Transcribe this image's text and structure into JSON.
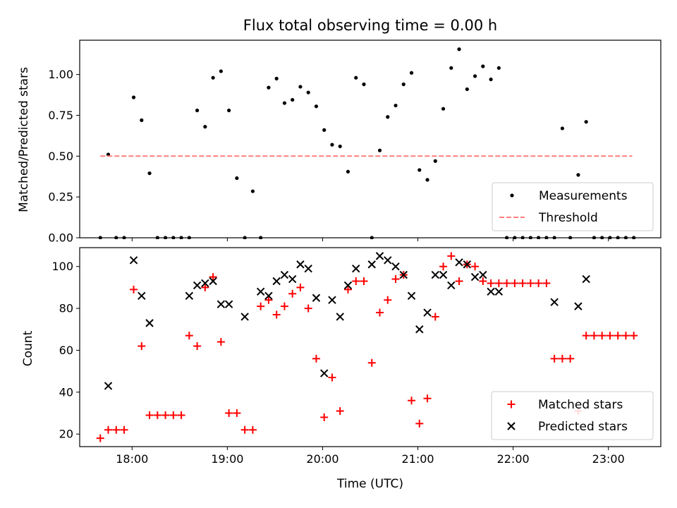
{
  "chart_data": [
    {
      "type": "scatter",
      "title": "Flux total observing time = 0.00 h",
      "xlabel": "",
      "ylabel": "Matched/Predicted stars",
      "xlim": [
        "17:27",
        "23:33"
      ],
      "ylim": [
        0,
        1.21
      ],
      "xticks": [
        "18:00",
        "19:00",
        "20:00",
        "21:00",
        "22:00",
        "23:00"
      ],
      "yticks": [
        "0.00",
        "0.25",
        "0.50",
        "0.75",
        "1.00"
      ],
      "ytick_values": [
        0,
        0.25,
        0.5,
        0.75,
        1.0
      ],
      "legend_position": "lower-right",
      "series": [
        {
          "name": "Measurements",
          "kind": "scatter",
          "color": "#000000",
          "x": [
            "17:40",
            "17:45",
            "17:50",
            "17:55",
            "18:01",
            "18:06",
            "18:11",
            "18:16",
            "18:21",
            "18:26",
            "18:31",
            "18:36",
            "18:41",
            "18:46",
            "18:51",
            "18:56",
            "19:01",
            "19:06",
            "19:11",
            "19:16",
            "19:21",
            "19:26",
            "19:31",
            "19:36",
            "19:41",
            "19:46",
            "19:51",
            "19:56",
            "20:01",
            "20:06",
            "20:11",
            "20:16",
            "20:21",
            "20:26",
            "20:31",
            "20:36",
            "20:41",
            "20:46",
            "20:51",
            "20:56",
            "21:01",
            "21:06",
            "21:11",
            "21:16",
            "21:21",
            "21:26",
            "21:31",
            "21:36",
            "21:41",
            "21:46",
            "21:51",
            "21:56",
            "22:01",
            "22:06",
            "22:11",
            "22:16",
            "22:21",
            "22:26",
            "22:31",
            "22:36",
            "22:41",
            "22:46",
            "22:51",
            "22:56",
            "23:01",
            "23:06",
            "23:11",
            "23:16"
          ],
          "y": [
            0,
            0.51,
            0,
            0,
            0.86,
            0.72,
            0.395,
            0,
            0,
            0,
            0,
            0,
            0.78,
            0.68,
            0.98,
            1.02,
            0.78,
            0.365,
            0,
            0.285,
            0,
            0.92,
            0.975,
            0.825,
            0.845,
            0.925,
            0.89,
            0.805,
            0.66,
            0.57,
            0.56,
            0.405,
            0.98,
            0.94,
            0,
            0.535,
            0.74,
            0.81,
            0.94,
            1.01,
            0.415,
            0.355,
            0.47,
            0.79,
            1.04,
            1.155,
            0.91,
            0.99,
            1.05,
            0.97,
            1.04,
            0,
            0,
            0,
            0,
            0,
            0,
            0,
            0.67,
            0,
            0.385,
            0.71,
            0,
            0,
            0,
            0,
            0,
            0
          ]
        },
        {
          "name": "Threshold",
          "kind": "line",
          "style": "dashed",
          "color": "#ff7f7f",
          "x": [
            "17:40",
            "23:15"
          ],
          "y": [
            0.5,
            0.5
          ]
        }
      ]
    },
    {
      "type": "scatter",
      "title": "",
      "xlabel": "Time (UTC)",
      "ylabel": "Count",
      "xlim": [
        "17:27",
        "23:33"
      ],
      "ylim": [
        14,
        109
      ],
      "xticks": [
        "18:00",
        "19:00",
        "20:00",
        "21:00",
        "22:00",
        "23:00"
      ],
      "yticks": [
        "20",
        "40",
        "60",
        "80",
        "100"
      ],
      "ytick_values": [
        20,
        40,
        60,
        80,
        100
      ],
      "legend_position": "lower-right",
      "series": [
        {
          "name": "Matched stars",
          "kind": "scatter",
          "marker": "plus",
          "color": "#ff0000",
          "x": [
            "17:40",
            "17:45",
            "17:50",
            "17:55",
            "18:01",
            "18:06",
            "18:11",
            "18:16",
            "18:21",
            "18:26",
            "18:31",
            "18:36",
            "18:41",
            "18:46",
            "18:51",
            "18:56",
            "19:01",
            "19:06",
            "19:11",
            "19:16",
            "19:21",
            "19:26",
            "19:31",
            "19:36",
            "19:41",
            "19:46",
            "19:51",
            "19:56",
            "20:01",
            "20:06",
            "20:11",
            "20:16",
            "20:21",
            "20:26",
            "20:31",
            "20:36",
            "20:41",
            "20:46",
            "20:51",
            "20:56",
            "21:01",
            "21:06",
            "21:11",
            "21:16",
            "21:21",
            "21:26",
            "21:31",
            "21:36",
            "21:41",
            "21:46",
            "21:51",
            "21:56",
            "22:01",
            "22:06",
            "22:11",
            "22:16",
            "22:21",
            "22:26",
            "22:31",
            "22:36",
            "22:41",
            "22:46",
            "22:51",
            "22:56",
            "23:01",
            "23:06",
            "23:11",
            "23:16"
          ],
          "y": [
            18,
            22,
            22,
            22,
            89,
            62,
            29,
            29,
            29,
            29,
            29,
            67,
            62,
            90,
            95,
            64,
            30,
            30,
            22,
            22,
            81,
            84,
            77,
            81,
            87,
            90,
            80,
            56,
            28,
            47,
            31,
            89,
            93,
            93,
            54,
            78,
            84,
            94,
            96,
            36,
            25,
            37,
            76,
            100,
            105,
            93,
            101,
            100,
            93,
            92,
            92,
            92,
            92,
            92,
            92,
            92,
            92,
            56,
            56,
            56,
            31,
            67,
            67,
            67,
            67,
            67,
            67,
            67
          ]
        },
        {
          "name": "Predicted stars",
          "kind": "scatter",
          "marker": "x",
          "color": "#000000",
          "x": [
            "17:45",
            "18:01",
            "18:06",
            "18:11",
            "18:36",
            "18:41",
            "18:46",
            "18:51",
            "18:56",
            "19:01",
            "19:11",
            "19:21",
            "19:26",
            "19:31",
            "19:36",
            "19:41",
            "19:46",
            "19:51",
            "19:56",
            "20:01",
            "20:06",
            "20:11",
            "20:16",
            "20:21",
            "20:31",
            "20:36",
            "20:41",
            "20:46",
            "20:51",
            "20:56",
            "21:01",
            "21:06",
            "21:11",
            "21:16",
            "21:21",
            "21:26",
            "21:31",
            "21:36",
            "21:41",
            "21:46",
            "21:51",
            "22:26",
            "22:41",
            "22:46"
          ],
          "y": [
            43,
            103,
            86,
            73,
            86,
            91,
            92,
            93,
            82,
            82,
            76,
            88,
            86,
            93,
            96,
            94,
            101,
            99,
            85,
            49,
            84,
            76,
            91,
            99,
            101,
            105,
            103,
            100,
            96,
            86,
            70,
            78,
            96,
            96,
            91,
            102,
            101,
            95,
            96,
            88,
            88,
            83,
            81,
            94
          ]
        }
      ]
    }
  ]
}
